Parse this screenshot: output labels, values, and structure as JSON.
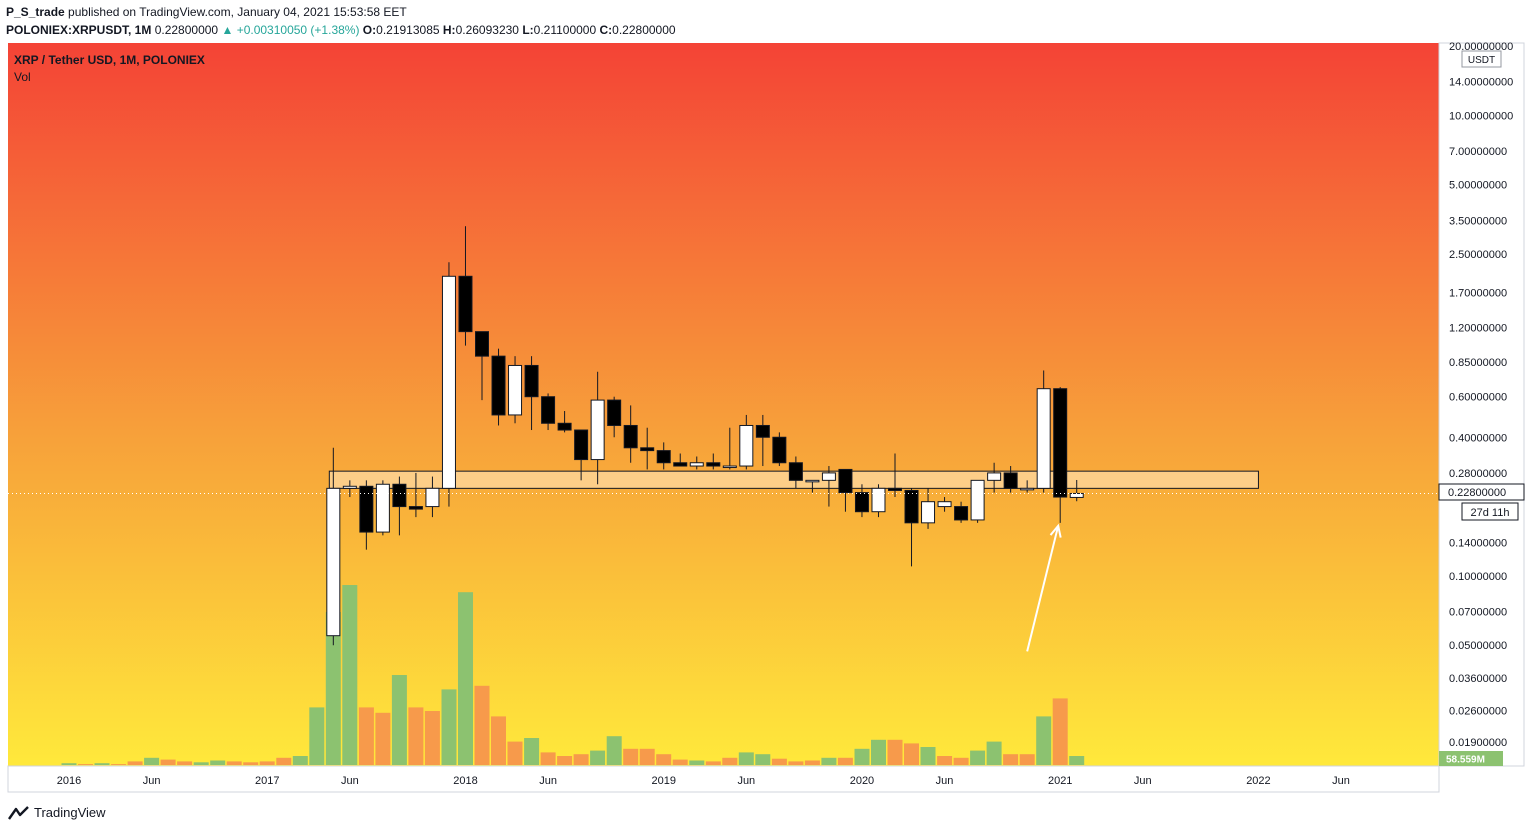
{
  "header": {
    "author": "P_S_trade",
    "published_text": "published on TradingView.com, January 04, 2021 15:53:58 EET",
    "symbol_line": "POLONIEX:XRPUSDT, 1M",
    "last": "0.22800000",
    "change": "+0.00310050 (+1.38%)",
    "o_label": "O:",
    "o": "0.21913085",
    "h_label": "H:",
    "h": "0.26093230",
    "l_label": "L:",
    "l": "0.21100000",
    "c_label": "C:",
    "c": "0.22800000"
  },
  "legend": {
    "title": "XRP / Tether USD, 1M, POLONIEX",
    "vol_label": "Vol"
  },
  "footer": {
    "brand": "TradingView"
  },
  "colors": {
    "bg_top": "#f44336",
    "bg_mid": "#f7a23a",
    "bg_bottom": "#ffe93b",
    "bull_body": "#ffffff",
    "bear_body": "#000000",
    "vol_up": "#8cc270",
    "vol_down": "#f79a4b",
    "zone_fill": "#ffd9a3",
    "arrow": "#ffffff",
    "price_line": "#ffffff"
  },
  "chart_data": {
    "type": "candlestick",
    "title": "XRP / Tether USD, 1M, POLONIEX",
    "y_scale": "log",
    "y_currency": "USDT",
    "y_ticks": [
      "20.00000000",
      "14.00000000",
      "10.00000000",
      "7.00000000",
      "5.00000000",
      "3.50000000",
      "2.50000000",
      "1.70000000",
      "1.20000000",
      "0.85000000",
      "0.60000000",
      "0.40000000",
      "0.28000000",
      "0.14000000",
      "0.10000000",
      "0.07000000",
      "0.05000000",
      "0.03600000",
      "0.02600000",
      "0.01900000"
    ],
    "x_ticks": [
      "2016",
      "Jun",
      "2017",
      "Jun",
      "2018",
      "Jun",
      "2019",
      "Jun",
      "2020",
      "Jun",
      "2021",
      "Jun",
      "2022",
      "Jun"
    ],
    "last_price_label": "0.22800000",
    "countdown_label": "27d 11h",
    "volume_label": "58.559M",
    "candles": [
      {
        "date": "2017-05",
        "o": 0.055,
        "h": 0.36,
        "l": 0.05,
        "c": 0.24
      },
      {
        "date": "2017-06",
        "o": 0.24,
        "h": 0.26,
        "l": 0.22,
        "c": 0.245
      },
      {
        "date": "2017-07",
        "o": 0.245,
        "h": 0.26,
        "l": 0.13,
        "c": 0.155
      },
      {
        "date": "2017-08",
        "o": 0.155,
        "h": 0.26,
        "l": 0.15,
        "c": 0.25
      },
      {
        "date": "2017-09",
        "o": 0.25,
        "h": 0.27,
        "l": 0.15,
        "c": 0.2
      },
      {
        "date": "2017-10",
        "o": 0.2,
        "h": 0.28,
        "l": 0.18,
        "c": 0.195
      },
      {
        "date": "2017-11",
        "o": 0.2,
        "h": 0.27,
        "l": 0.18,
        "c": 0.24
      },
      {
        "date": "2017-12",
        "o": 0.24,
        "h": 2.3,
        "l": 0.2,
        "c": 2.0
      },
      {
        "date": "2018-01",
        "o": 2.0,
        "h": 3.3,
        "l": 1.0,
        "c": 1.15
      },
      {
        "date": "2018-02",
        "o": 1.15,
        "h": 1.15,
        "l": 0.58,
        "c": 0.9
      },
      {
        "date": "2018-03",
        "o": 0.9,
        "h": 0.97,
        "l": 0.45,
        "c": 0.5
      },
      {
        "date": "2018-04",
        "o": 0.5,
        "h": 0.9,
        "l": 0.46,
        "c": 0.82
      },
      {
        "date": "2018-05",
        "o": 0.82,
        "h": 0.9,
        "l": 0.43,
        "c": 0.6
      },
      {
        "date": "2018-06",
        "o": 0.6,
        "h": 0.62,
        "l": 0.43,
        "c": 0.46
      },
      {
        "date": "2018-07",
        "o": 0.46,
        "h": 0.52,
        "l": 0.42,
        "c": 0.43
      },
      {
        "date": "2018-08",
        "o": 0.43,
        "h": 0.43,
        "l": 0.26,
        "c": 0.32
      },
      {
        "date": "2018-09",
        "o": 0.32,
        "h": 0.77,
        "l": 0.25,
        "c": 0.58
      },
      {
        "date": "2018-10",
        "o": 0.58,
        "h": 0.6,
        "l": 0.4,
        "c": 0.45
      },
      {
        "date": "2018-11",
        "o": 0.45,
        "h": 0.55,
        "l": 0.31,
        "c": 0.36
      },
      {
        "date": "2018-12",
        "o": 0.36,
        "h": 0.44,
        "l": 0.29,
        "c": 0.35
      },
      {
        "date": "2019-01",
        "o": 0.35,
        "h": 0.38,
        "l": 0.29,
        "c": 0.31
      },
      {
        "date": "2019-02",
        "o": 0.31,
        "h": 0.34,
        "l": 0.3,
        "c": 0.3
      },
      {
        "date": "2019-03",
        "o": 0.3,
        "h": 0.33,
        "l": 0.29,
        "c": 0.31
      },
      {
        "date": "2019-04",
        "o": 0.31,
        "h": 0.34,
        "l": 0.29,
        "c": 0.3
      },
      {
        "date": "2019-05",
        "o": 0.3,
        "h": 0.44,
        "l": 0.29,
        "c": 0.3
      },
      {
        "date": "2019-06",
        "o": 0.3,
        "h": 0.5,
        "l": 0.29,
        "c": 0.45
      },
      {
        "date": "2019-07",
        "o": 0.45,
        "h": 0.5,
        "l": 0.3,
        "c": 0.4
      },
      {
        "date": "2019-08",
        "o": 0.4,
        "h": 0.42,
        "l": 0.3,
        "c": 0.31
      },
      {
        "date": "2019-09",
        "o": 0.31,
        "h": 0.33,
        "l": 0.24,
        "c": 0.26
      },
      {
        "date": "2019-10",
        "o": 0.26,
        "h": 0.26,
        "l": 0.23,
        "c": 0.26
      },
      {
        "date": "2019-11",
        "o": 0.26,
        "h": 0.3,
        "l": 0.2,
        "c": 0.28
      },
      {
        "date": "2019-12",
        "o": 0.29,
        "h": 0.29,
        "l": 0.19,
        "c": 0.23
      },
      {
        "date": "2020-01",
        "o": 0.23,
        "h": 0.25,
        "l": 0.18,
        "c": 0.19
      },
      {
        "date": "2020-02",
        "o": 0.19,
        "h": 0.25,
        "l": 0.18,
        "c": 0.24
      },
      {
        "date": "2020-03",
        "o": 0.24,
        "h": 0.34,
        "l": 0.22,
        "c": 0.235
      },
      {
        "date": "2020-04",
        "o": 0.235,
        "h": 0.24,
        "l": 0.11,
        "c": 0.17
      },
      {
        "date": "2020-05",
        "o": 0.17,
        "h": 0.24,
        "l": 0.16,
        "c": 0.21
      },
      {
        "date": "2020-06",
        "o": 0.2,
        "h": 0.22,
        "l": 0.19,
        "c": 0.21
      },
      {
        "date": "2020-07",
        "o": 0.2,
        "h": 0.21,
        "l": 0.17,
        "c": 0.175
      },
      {
        "date": "2020-08",
        "o": 0.175,
        "h": 0.26,
        "l": 0.17,
        "c": 0.26
      },
      {
        "date": "2020-09",
        "o": 0.26,
        "h": 0.31,
        "l": 0.23,
        "c": 0.28
      },
      {
        "date": "2020-10",
        "o": 0.28,
        "h": 0.3,
        "l": 0.23,
        "c": 0.24
      },
      {
        "date": "2020-11",
        "o": 0.24,
        "h": 0.26,
        "l": 0.23,
        "c": 0.24
      },
      {
        "date": "2020-12",
        "o": 0.24,
        "h": 0.78,
        "l": 0.23,
        "c": 0.65
      },
      {
        "date": "2021-01",
        "o": 0.65,
        "h": 0.66,
        "l": 0.17,
        "c": 0.22
      },
      {
        "date": "2021-02",
        "o": 0.21913085,
        "h": 0.2609323,
        "l": 0.211,
        "c": 0.228
      }
    ],
    "volume_series": [
      {
        "date": "2016-01",
        "value": 1,
        "dir": "up"
      },
      {
        "date": "2016-02",
        "value": 0.5,
        "dir": "down"
      },
      {
        "date": "2016-03",
        "value": 1,
        "dir": "up"
      },
      {
        "date": "2016-04",
        "value": 0.5,
        "dir": "down"
      },
      {
        "date": "2016-05",
        "value": 2,
        "dir": "down"
      },
      {
        "date": "2016-06",
        "value": 4,
        "dir": "up"
      },
      {
        "date": "2016-07",
        "value": 3,
        "dir": "down"
      },
      {
        "date": "2016-08",
        "value": 2,
        "dir": "down"
      },
      {
        "date": "2016-09",
        "value": 1.5,
        "dir": "up"
      },
      {
        "date": "2016-10",
        "value": 2.5,
        "dir": "up"
      },
      {
        "date": "2016-11",
        "value": 2,
        "dir": "down"
      },
      {
        "date": "2016-12",
        "value": 1.5,
        "dir": "down"
      },
      {
        "date": "2017-01",
        "value": 2,
        "dir": "down"
      },
      {
        "date": "2017-02",
        "value": 4,
        "dir": "down"
      },
      {
        "date": "2017-03",
        "value": 5,
        "dir": "up"
      },
      {
        "date": "2017-04",
        "value": 32,
        "dir": "up"
      },
      {
        "date": "2017-05",
        "value": 85,
        "dir": "up"
      },
      {
        "date": "2017-06",
        "value": 100,
        "dir": "up"
      },
      {
        "date": "2017-07",
        "value": 32,
        "dir": "down"
      },
      {
        "date": "2017-08",
        "value": 29,
        "dir": "down"
      },
      {
        "date": "2017-09",
        "value": 50,
        "dir": "up"
      },
      {
        "date": "2017-10",
        "value": 32,
        "dir": "down"
      },
      {
        "date": "2017-11",
        "value": 30,
        "dir": "down"
      },
      {
        "date": "2017-12",
        "value": 42,
        "dir": "up"
      },
      {
        "date": "2018-01",
        "value": 96,
        "dir": "up"
      },
      {
        "date": "2018-02",
        "value": 44,
        "dir": "down"
      },
      {
        "date": "2018-03",
        "value": 27,
        "dir": "down"
      },
      {
        "date": "2018-04",
        "value": 13,
        "dir": "down"
      },
      {
        "date": "2018-05",
        "value": 15,
        "dir": "up"
      },
      {
        "date": "2018-06",
        "value": 7,
        "dir": "down"
      },
      {
        "date": "2018-07",
        "value": 5,
        "dir": "down"
      },
      {
        "date": "2018-08",
        "value": 6,
        "dir": "down"
      },
      {
        "date": "2018-09",
        "value": 8,
        "dir": "up"
      },
      {
        "date": "2018-10",
        "value": 16,
        "dir": "up"
      },
      {
        "date": "2018-11",
        "value": 9,
        "dir": "down"
      },
      {
        "date": "2018-12",
        "value": 9,
        "dir": "down"
      },
      {
        "date": "2019-01",
        "value": 6,
        "dir": "down"
      },
      {
        "date": "2019-02",
        "value": 3,
        "dir": "down"
      },
      {
        "date": "2019-03",
        "value": 2.5,
        "dir": "up"
      },
      {
        "date": "2019-04",
        "value": 2,
        "dir": "down"
      },
      {
        "date": "2019-05",
        "value": 4,
        "dir": "down"
      },
      {
        "date": "2019-06",
        "value": 7,
        "dir": "up"
      },
      {
        "date": "2019-07",
        "value": 6,
        "dir": "up"
      },
      {
        "date": "2019-08",
        "value": 3.5,
        "dir": "down"
      },
      {
        "date": "2019-09",
        "value": 2,
        "dir": "down"
      },
      {
        "date": "2019-10",
        "value": 2.5,
        "dir": "down"
      },
      {
        "date": "2019-11",
        "value": 4,
        "dir": "up"
      },
      {
        "date": "2019-12",
        "value": 4,
        "dir": "down"
      },
      {
        "date": "2020-01",
        "value": 9,
        "dir": "up"
      },
      {
        "date": "2020-02",
        "value": 14,
        "dir": "up"
      },
      {
        "date": "2020-03",
        "value": 14,
        "dir": "down"
      },
      {
        "date": "2020-04",
        "value": 12,
        "dir": "down"
      },
      {
        "date": "2020-05",
        "value": 10,
        "dir": "up"
      },
      {
        "date": "2020-06",
        "value": 5,
        "dir": "down"
      },
      {
        "date": "2020-07",
        "value": 4,
        "dir": "down"
      },
      {
        "date": "2020-08",
        "value": 8,
        "dir": "up"
      },
      {
        "date": "2020-09",
        "value": 13,
        "dir": "up"
      },
      {
        "date": "2020-10",
        "value": 6,
        "dir": "down"
      },
      {
        "date": "2020-11",
        "value": 6,
        "dir": "down"
      },
      {
        "date": "2020-12",
        "value": 27,
        "dir": "up"
      },
      {
        "date": "2021-01",
        "value": 37,
        "dir": "down"
      },
      {
        "date": "2021-02",
        "value": 5,
        "dir": "up"
      }
    ],
    "support_zone": {
      "low": 0.24,
      "high": 0.285,
      "from": "2017-05",
      "to": "2022-01"
    },
    "arrow_annotation": {
      "from": {
        "date": "2020-11",
        "price": 0.047
      },
      "to": {
        "date": "2021-01",
        "price": 0.165
      }
    }
  }
}
